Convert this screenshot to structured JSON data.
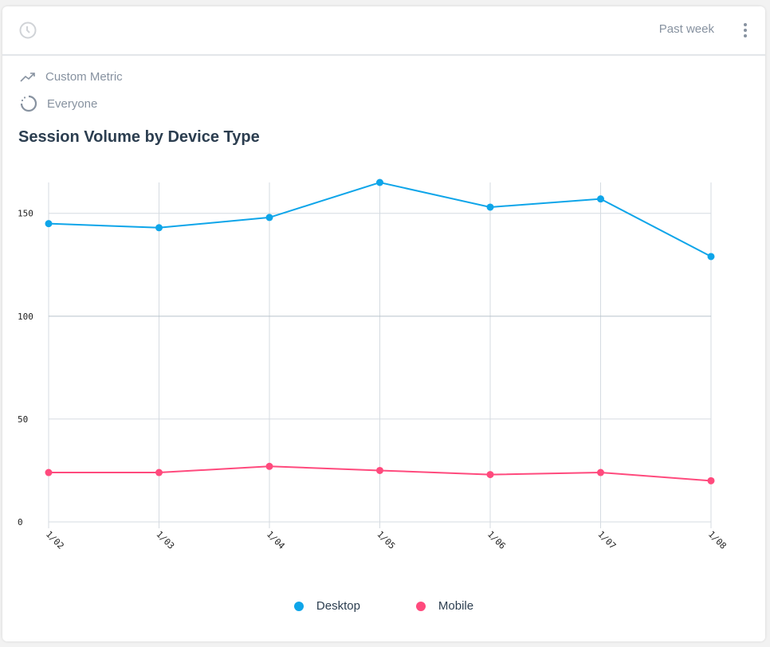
{
  "header": {
    "range_label": "Past week",
    "clock_icon": "clock-icon",
    "menu_icon": "kebab-menu-icon"
  },
  "meta": {
    "metric": "Custom Metric",
    "segment": "Everyone"
  },
  "chart_data": {
    "type": "line",
    "title": "Session Volume by Device Type",
    "categories": [
      "1/02",
      "1/03",
      "1/04",
      "1/05",
      "1/06",
      "1/07",
      "1/08"
    ],
    "yticks": [
      0,
      50,
      100,
      150
    ],
    "ylim": [
      0,
      165
    ],
    "grid": true,
    "legend": "bottom",
    "series": [
      {
        "name": "Desktop",
        "color": "#0ea5e9",
        "values": [
          145,
          143,
          148,
          165,
          153,
          157,
          129
        ]
      },
      {
        "name": "Mobile",
        "color": "#ff4a7d",
        "values": [
          24,
          24,
          27,
          25,
          23,
          24,
          20
        ]
      }
    ]
  }
}
